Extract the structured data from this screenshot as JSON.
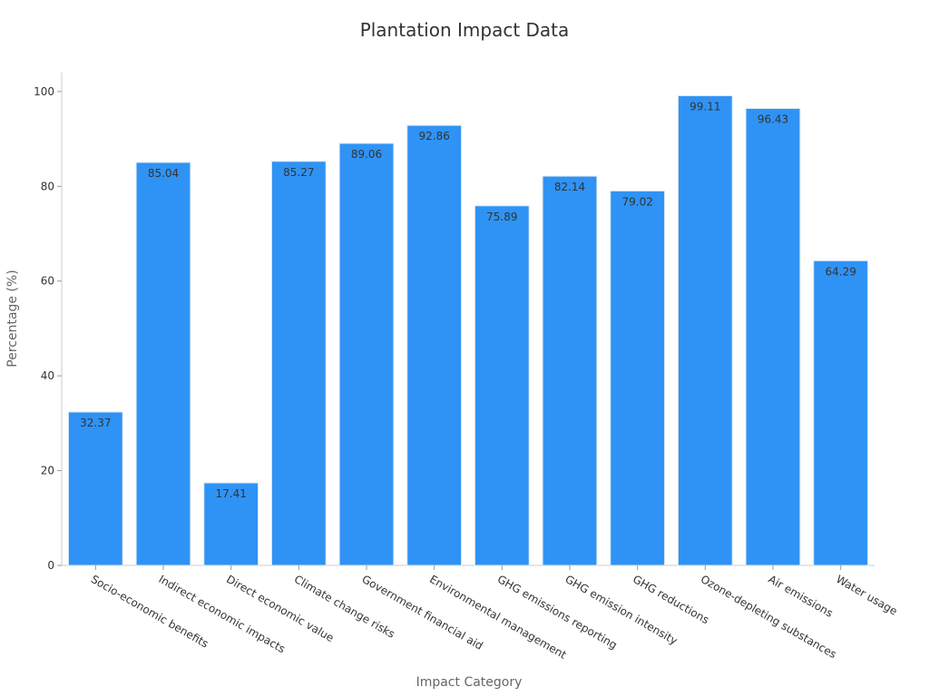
{
  "chart_data": {
    "type": "bar",
    "title": "Plantation Impact Data",
    "xlabel": "Impact Category",
    "ylabel": "Percentage (%)",
    "ylim": [
      0,
      104
    ],
    "yticks": [
      0,
      20,
      40,
      60,
      80,
      100
    ],
    "grid": false,
    "bar_color": "#2f93f5",
    "bar_edge_color": "#d9e6f2",
    "categories": [
      "Socio-economic benefits",
      "Indirect economic impacts",
      "Direct economic value",
      "Climate change risks",
      "Government financial aid",
      "Environmental management",
      "GHG emissions reporting",
      "GHG emission intensity",
      "GHG reductions",
      "Ozone-depleting substances",
      "Air emissions",
      "Water usage"
    ],
    "values": [
      32.37,
      85.04,
      17.41,
      85.27,
      89.06,
      92.86,
      75.89,
      82.14,
      79.02,
      99.11,
      96.43,
      64.29
    ],
    "data_labels": [
      "32.37",
      "85.04",
      "17.41",
      "85.27",
      "89.06",
      "92.86",
      "75.89",
      "82.14",
      "79.02",
      "99.11",
      "96.43",
      "64.29"
    ]
  }
}
